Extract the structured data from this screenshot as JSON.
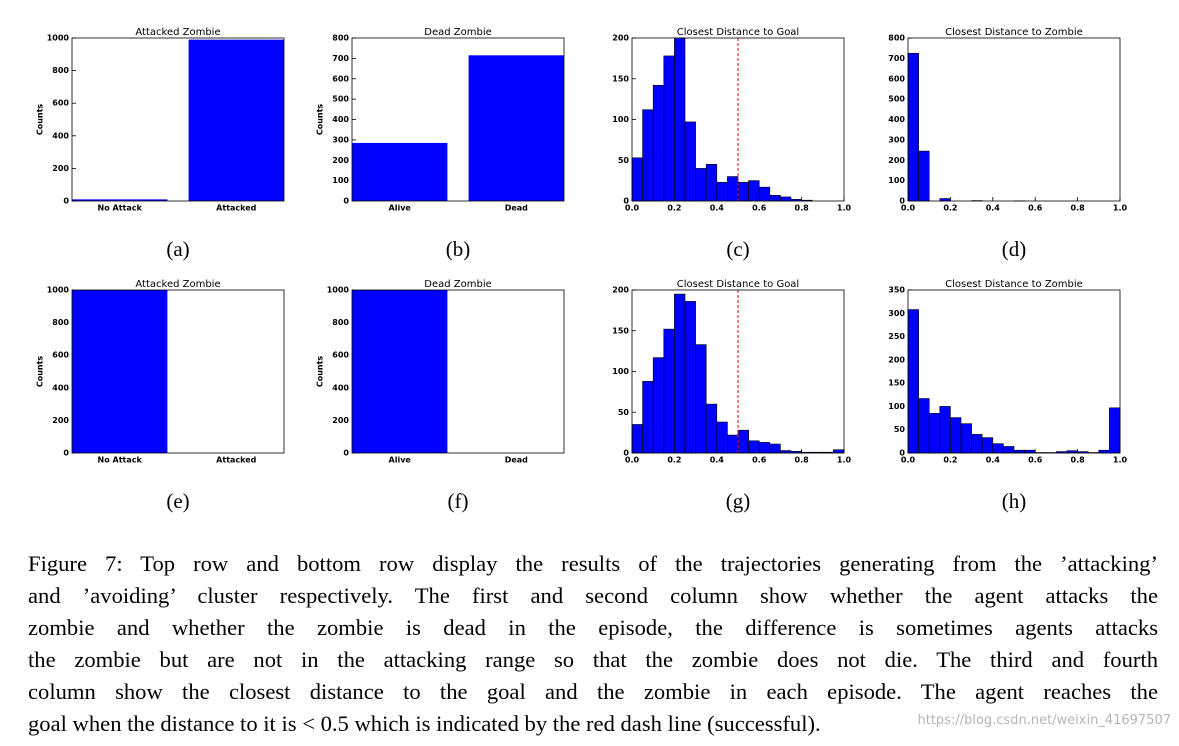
{
  "chart_data": [
    {
      "type": "bar",
      "title": "Attacked Zombie",
      "subcaption": "(a)",
      "ylabel": "Counts",
      "categories": [
        "No Attack",
        "Attacked"
      ],
      "values": [
        10,
        990
      ],
      "color": "#0000ff",
      "ylim": [
        0,
        1000
      ],
      "yticks": [
        0,
        200,
        400,
        600,
        800,
        1000
      ]
    },
    {
      "type": "bar",
      "title": "Dead Zombie",
      "subcaption": "(b)",
      "ylabel": "Counts",
      "categories": [
        "Alive",
        "Dead"
      ],
      "values": [
        285,
        715
      ],
      "color": "#0000ff",
      "ylim": [
        0,
        800
      ],
      "yticks": [
        0,
        100,
        200,
        300,
        400,
        500,
        600,
        700,
        800
      ]
    },
    {
      "type": "histogram",
      "title": "Closest Distance to Goal",
      "subcaption": "(c)",
      "bins": [
        0,
        0.05,
        0.1,
        0.15,
        0.2,
        0.25,
        0.3,
        0.35,
        0.4,
        0.45,
        0.5,
        0.55,
        0.6,
        0.65,
        0.7,
        0.75,
        0.8,
        0.85,
        0.9,
        0.95,
        1
      ],
      "values": [
        53,
        112,
        142,
        178,
        200,
        97,
        40,
        45,
        23,
        30,
        23,
        25,
        17,
        7,
        5,
        2,
        1,
        0,
        0,
        0
      ],
      "color": "#0000ff",
      "reference_line": {
        "x": 0.5,
        "color": "#ff0000"
      },
      "xlim": [
        0,
        1
      ],
      "xticks": [
        {
          "value": 0,
          "label": "0.0"
        },
        0.2,
        0.4,
        0.6,
        0.8,
        {
          "value": 1,
          "label": "1.0"
        }
      ],
      "ylim": [
        0,
        200
      ],
      "yticks": [
        0,
        50,
        100,
        150,
        200
      ]
    },
    {
      "type": "histogram",
      "title": "Closest Distance to Zombie",
      "subcaption": "(d)",
      "bins": [
        0,
        0.05,
        0.1,
        0.15,
        0.2,
        0.25,
        0.3,
        0.35,
        0.4,
        0.45,
        0.5,
        0.55,
        0.6,
        0.65,
        0.7,
        0.75,
        0.8,
        0.85,
        0.9,
        0.95,
        1
      ],
      "values": [
        725,
        245,
        0,
        12,
        0,
        0,
        2,
        0,
        0,
        0,
        1,
        0,
        0,
        0,
        0,
        0,
        0,
        0,
        0,
        0
      ],
      "color": "#0000ff",
      "xlim": [
        0,
        1
      ],
      "xticks": [
        {
          "value": 0,
          "label": "0.0"
        },
        0.2,
        0.4,
        0.6,
        0.8,
        {
          "value": 1,
          "label": "1.0"
        }
      ],
      "ylim": [
        0,
        800
      ],
      "yticks": [
        0,
        100,
        200,
        300,
        400,
        500,
        600,
        700,
        800
      ]
    },
    {
      "type": "bar",
      "title": "Attacked Zombie",
      "subcaption": "(e)",
      "ylabel": "Counts",
      "categories": [
        "No Attack",
        "Attacked"
      ],
      "values": [
        1000,
        0
      ],
      "color": "#0000ff",
      "ylim": [
        0,
        1000
      ],
      "yticks": [
        0,
        200,
        400,
        600,
        800,
        1000
      ]
    },
    {
      "type": "bar",
      "title": "Dead Zombie",
      "subcaption": "(f)",
      "ylabel": "Counts",
      "categories": [
        "Alive",
        "Dead"
      ],
      "values": [
        1000,
        0
      ],
      "color": "#0000ff",
      "ylim": [
        0,
        1000
      ],
      "yticks": [
        0,
        200,
        400,
        600,
        800,
        1000
      ]
    },
    {
      "type": "histogram",
      "title": "Closest Distance to Goal",
      "subcaption": "(g)",
      "bins": [
        0,
        0.05,
        0.1,
        0.15,
        0.2,
        0.25,
        0.3,
        0.35,
        0.4,
        0.45,
        0.5,
        0.55,
        0.6,
        0.65,
        0.7,
        0.75,
        0.8,
        0.85,
        0.9,
        0.95,
        1
      ],
      "values": [
        35,
        88,
        117,
        152,
        195,
        186,
        133,
        60,
        38,
        22,
        28,
        15,
        13,
        11,
        3,
        2,
        1,
        1,
        1,
        4
      ],
      "color": "#0000ff",
      "reference_line": {
        "x": 0.5,
        "color": "#ff0000"
      },
      "xlim": [
        0,
        1
      ],
      "xticks": [
        {
          "value": 0,
          "label": "0.0"
        },
        0.2,
        0.4,
        0.6,
        0.8,
        {
          "value": 1,
          "label": "1.0"
        }
      ],
      "ylim": [
        0,
        200
      ],
      "yticks": [
        0,
        50,
        100,
        150,
        200
      ]
    },
    {
      "type": "histogram",
      "title": "Closest Distance to Zombie",
      "subcaption": "(h)",
      "bins": [
        0,
        0.05,
        0.1,
        0.15,
        0.2,
        0.25,
        0.3,
        0.35,
        0.4,
        0.45,
        0.5,
        0.55,
        0.6,
        0.65,
        0.7,
        0.75,
        0.8,
        0.85,
        0.9,
        0.95,
        1
      ],
      "values": [
        308,
        117,
        85,
        100,
        76,
        63,
        40,
        33,
        20,
        14,
        6,
        6,
        1,
        1,
        3,
        5,
        3,
        1,
        6,
        97
      ],
      "color": "#0000ff",
      "xlim": [
        0,
        1
      ],
      "xticks": [
        {
          "value": 0,
          "label": "0.0"
        },
        0.2,
        0.4,
        0.6,
        0.8,
        {
          "value": 1,
          "label": "1.0"
        }
      ],
      "ylim": [
        0,
        350
      ],
      "yticks": [
        0,
        50,
        100,
        150,
        200,
        250,
        300,
        350
      ]
    }
  ],
  "caption_lines": [
    "Figure 7: Top row and bottom row display the results of the trajectories generating from the ’attacking’",
    "and ’avoiding’ cluster respectively. The first and second column show whether the agent attacks the",
    "zombie and whether the zombie is dead in the episode, the difference is sometimes agents attacks",
    "the zombie but are not in the attacking range so that the zombie does not die. The third and fourth",
    "column show the closest distance to the goal and the zombie in each episode. The agent reaches the",
    "goal when the distance to it is < 0.5 which is indicated by the red dash line (successful)."
  ],
  "watermark": "https://blog.csdn.net/weixin_41697507"
}
